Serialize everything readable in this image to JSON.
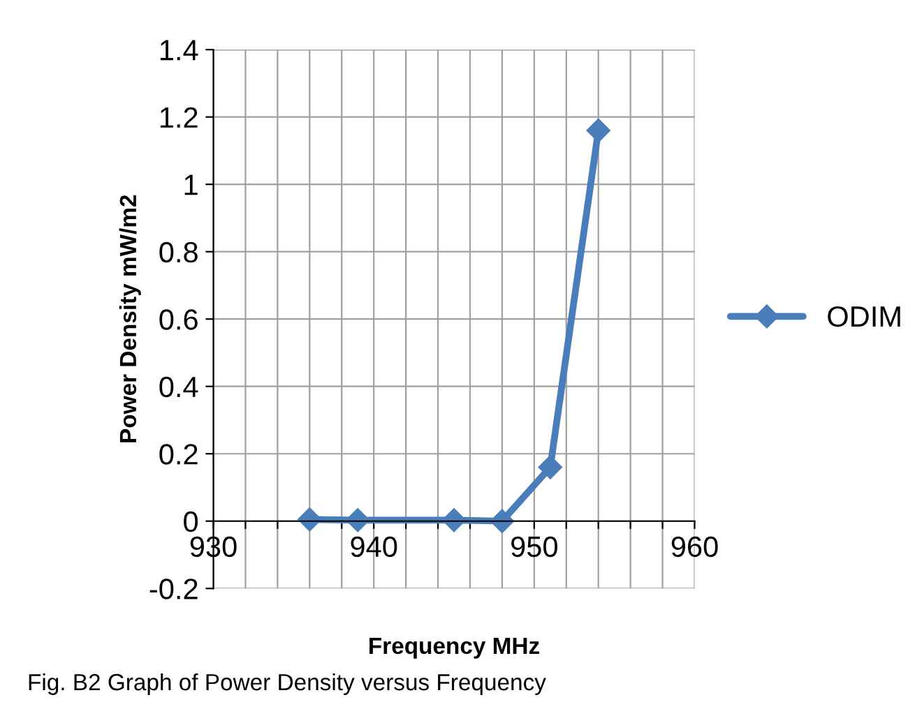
{
  "chart_data": {
    "type": "line",
    "xlabel": "Frequency MHz",
    "ylabel": "Power Density mW/m2",
    "annotations": [
      "Fig. B2 Graph of Power Density versus Frequency"
    ],
    "x": [
      936,
      939,
      945,
      948,
      951,
      954
    ],
    "series": [
      {
        "name": "ODIM",
        "color": "#4a7ebb",
        "values": [
          0.005,
          0.003,
          0.003,
          0.0,
          0.16,
          1.16
        ]
      }
    ],
    "xlim": [
      930,
      960
    ],
    "xticks": [
      930,
      {
        "value": 932,
        "label": null
      },
      {
        "value": 934,
        "label": null
      },
      {
        "value": 936,
        "label": null
      },
      {
        "value": 938,
        "label": null
      },
      940,
      {
        "value": 942,
        "label": null
      },
      {
        "value": 944,
        "label": null
      },
      {
        "value": 946,
        "label": null
      },
      {
        "value": 948,
        "label": null
      },
      950,
      {
        "value": 952,
        "label": null
      },
      {
        "value": 954,
        "label": null
      },
      {
        "value": 956,
        "label": null
      },
      {
        "value": 958,
        "label": null
      },
      960
    ],
    "ylim": [
      -0.2,
      1.4
    ],
    "yticks": [
      -0.2,
      0,
      0.2,
      0.4,
      0.6,
      0.8,
      1,
      1.2,
      1.4
    ],
    "grid": true,
    "legend": "right",
    "marker": "diamond",
    "line_style": "solid"
  }
}
